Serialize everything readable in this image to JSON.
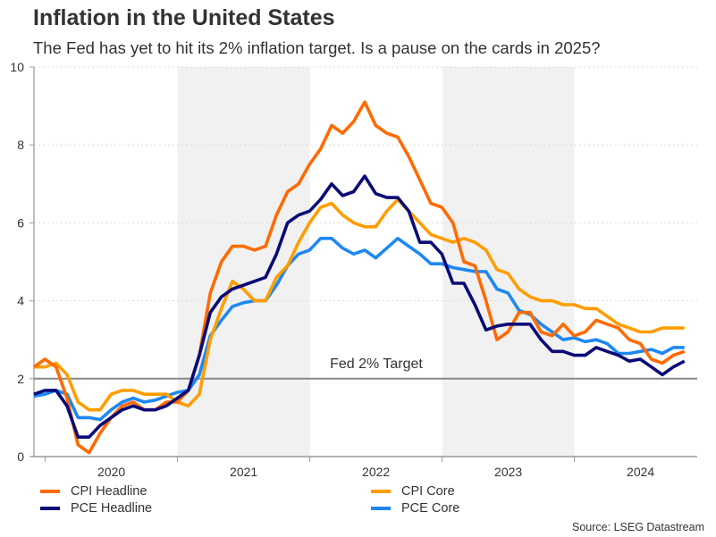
{
  "chart_data": {
    "type": "line",
    "title": "Inflation in the United States",
    "subtitle": "The Fed has yet to hit its 2% inflation target. Is a pause on the cards in 2025?",
    "x_start": "2019-12",
    "x_end": "2024-11",
    "x_frequency": "monthly",
    "x_tick_labels": [
      "2020",
      "2021",
      "2022",
      "2023",
      "2024"
    ],
    "ylim": [
      0,
      10
    ],
    "y_ticks": [
      0,
      2,
      4,
      6,
      8,
      10
    ],
    "grid": true,
    "shaded_years": [
      "2021",
      "2023"
    ],
    "reference_line": {
      "value": 2,
      "label": "Fed 2% Target"
    },
    "legend_position": "bottom",
    "series": [
      {
        "name": "CPI Headline",
        "color": "#ff6a00",
        "values": [
          2.3,
          2.5,
          2.3,
          1.5,
          0.3,
          0.1,
          0.6,
          1.0,
          1.3,
          1.4,
          1.2,
          1.2,
          1.4,
          1.4,
          1.7,
          2.6,
          4.2,
          5.0,
          5.4,
          5.4,
          5.3,
          5.4,
          6.2,
          6.8,
          7.0,
          7.5,
          7.9,
          8.5,
          8.3,
          8.6,
          9.1,
          8.5,
          8.3,
          8.2,
          7.7,
          7.1,
          6.5,
          6.4,
          6.0,
          5.0,
          4.9,
          4.0,
          3.0,
          3.2,
          3.7,
          3.7,
          3.2,
          3.1,
          3.4,
          3.1,
          3.2,
          3.5,
          3.4,
          3.3,
          3.0,
          2.9,
          2.5,
          2.4,
          2.6,
          2.7
        ]
      },
      {
        "name": "CPI Core",
        "color": "#ff9d00",
        "values": [
          2.3,
          2.3,
          2.4,
          2.1,
          1.4,
          1.2,
          1.2,
          1.6,
          1.7,
          1.7,
          1.6,
          1.6,
          1.6,
          1.4,
          1.3,
          1.6,
          3.0,
          3.8,
          4.5,
          4.3,
          4.0,
          4.0,
          4.6,
          4.9,
          5.5,
          6.0,
          6.4,
          6.5,
          6.2,
          6.0,
          5.9,
          5.9,
          6.3,
          6.6,
          6.3,
          6.0,
          5.7,
          5.6,
          5.5,
          5.6,
          5.5,
          5.3,
          4.8,
          4.7,
          4.3,
          4.1,
          4.0,
          4.0,
          3.9,
          3.9,
          3.8,
          3.8,
          3.6,
          3.4,
          3.3,
          3.2,
          3.2,
          3.3,
          3.3,
          3.3
        ]
      },
      {
        "name": "PCE Headline",
        "color": "#0a0a78",
        "values": [
          1.6,
          1.7,
          1.7,
          1.3,
          0.5,
          0.5,
          0.8,
          1.0,
          1.2,
          1.3,
          1.2,
          1.2,
          1.3,
          1.5,
          1.7,
          2.6,
          3.7,
          4.1,
          4.3,
          4.4,
          4.5,
          4.6,
          5.2,
          6.0,
          6.2,
          6.3,
          6.6,
          7.0,
          6.7,
          6.8,
          7.2,
          6.75,
          6.65,
          6.65,
          6.3,
          5.5,
          5.5,
          5.2,
          4.45,
          4.45,
          3.9,
          3.25,
          3.35,
          3.4,
          3.4,
          3.4,
          3.0,
          2.7,
          2.7,
          2.6,
          2.6,
          2.8,
          2.7,
          2.6,
          2.45,
          2.5,
          2.3,
          2.1,
          2.3,
          2.45
        ]
      },
      {
        "name": "PCE Core",
        "color": "#1e88f0",
        "values": [
          1.55,
          1.6,
          1.7,
          1.6,
          1.0,
          1.0,
          0.95,
          1.2,
          1.4,
          1.5,
          1.4,
          1.45,
          1.55,
          1.65,
          1.7,
          2.1,
          3.1,
          3.5,
          3.85,
          3.95,
          4.0,
          4.0,
          4.4,
          4.9,
          5.2,
          5.3,
          5.6,
          5.6,
          5.35,
          5.2,
          5.3,
          5.1,
          5.35,
          5.6,
          5.4,
          5.2,
          4.95,
          4.95,
          4.85,
          4.8,
          4.75,
          4.75,
          4.3,
          4.2,
          3.75,
          3.65,
          3.4,
          3.2,
          3.0,
          3.05,
          2.95,
          3.0,
          2.9,
          2.65,
          2.65,
          2.7,
          2.75,
          2.65,
          2.8,
          2.8
        ]
      }
    ],
    "source": "Source: LSEG Datastream"
  }
}
